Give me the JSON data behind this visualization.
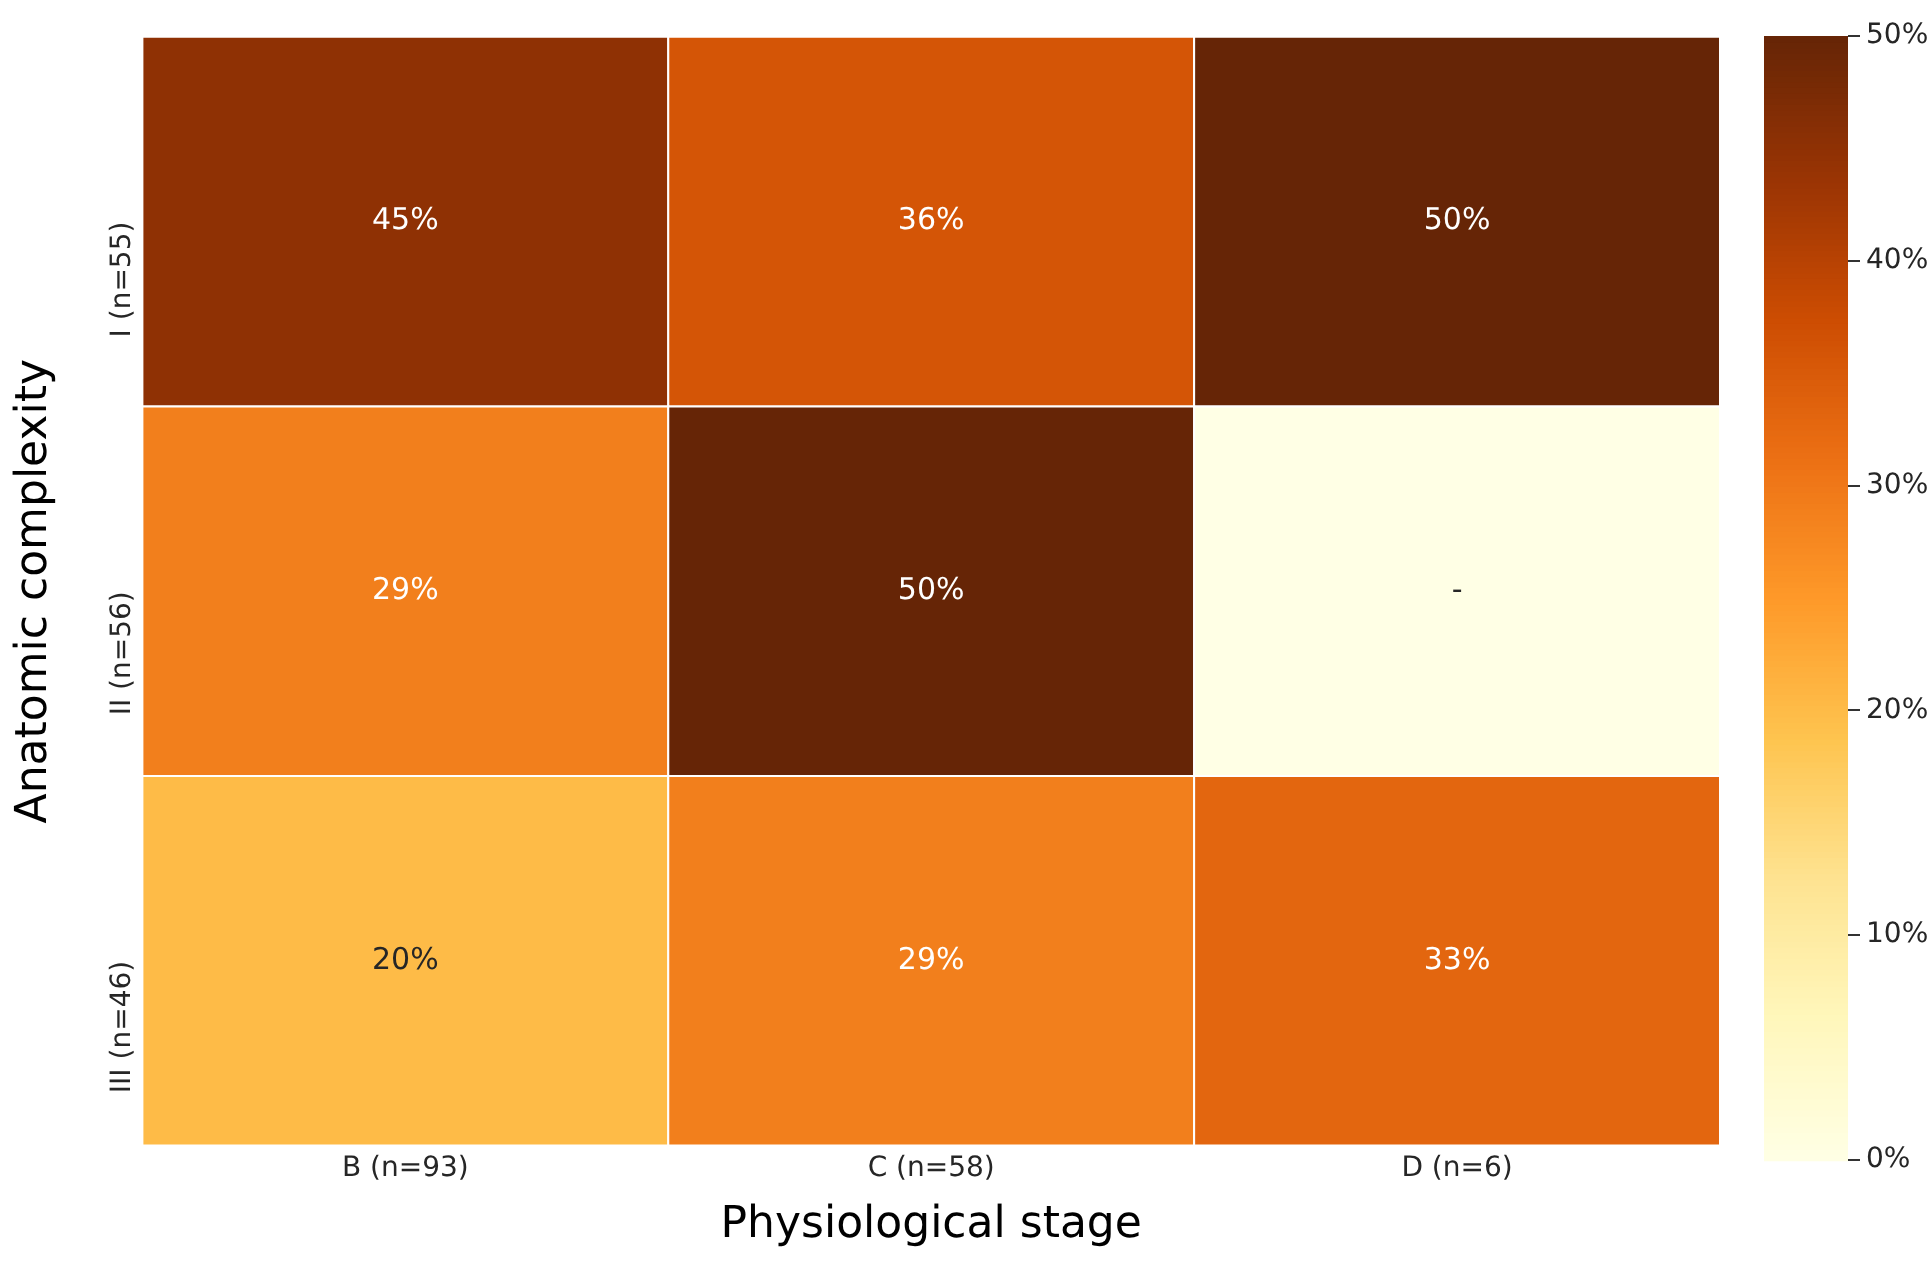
{
  "chart_data": {
    "type": "heatmap",
    "xlabel": "Physiological stage",
    "ylabel": "Anatomic complexity",
    "categories": [
      "B (n=93)",
      "C (n=58)",
      "D (n=6)"
    ],
    "y_categories": [
      "I (n=55)",
      "II (n=56)",
      "III (n=46)"
    ],
    "cells": [
      [
        45,
        36,
        50
      ],
      [
        29,
        50,
        0
      ],
      [
        20,
        29,
        33
      ]
    ],
    "cell_labels": [
      [
        "45%",
        "36%",
        "50%"
      ],
      [
        "29%",
        "50%",
        "-"
      ],
      [
        "20%",
        "29%",
        "33%"
      ]
    ],
    "clim": [
      0,
      50
    ],
    "cticks": [
      {
        "value": 0,
        "label": "0%"
      },
      {
        "value": 10,
        "label": "10%"
      },
      {
        "value": 20,
        "label": "20%"
      },
      {
        "value": 30,
        "label": "30%"
      },
      {
        "value": 40,
        "label": "40%"
      },
      {
        "value": 50,
        "label": "50%"
      }
    ]
  }
}
